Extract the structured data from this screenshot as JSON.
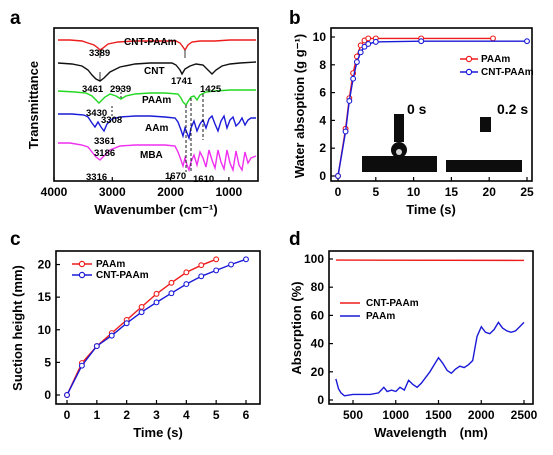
{
  "colors": {
    "red": "#ee1c1c",
    "blue": "#1a1ad8",
    "black": "#111111",
    "green": "#22d822",
    "magenta": "#ef2fef"
  },
  "panels": {
    "a": {
      "letter": "a"
    },
    "b": {
      "letter": "b"
    },
    "c": {
      "letter": "c"
    },
    "d": {
      "letter": "d"
    }
  },
  "chart_data": [
    {
      "type": "line",
      "panel": "a",
      "xlabel": "Wavenumber (cm⁻¹)",
      "ylabel": "Transmittance",
      "xlim": [
        4000,
        500
      ],
      "xticks": [
        4000,
        3000,
        2000,
        1000
      ],
      "series": [
        {
          "name": "CNT-PAAm",
          "color": "red"
        },
        {
          "name": "CNT",
          "color": "black"
        },
        {
          "name": "PAAm",
          "color": "green"
        },
        {
          "name": "AAm",
          "color": "blue"
        },
        {
          "name": "MBA",
          "color": "magenta"
        }
      ],
      "annotations": [
        "3389",
        "3461",
        "1741",
        "3430",
        "2939",
        "1425",
        "3308",
        "3361",
        "3186",
        "3316",
        "1670",
        "1610"
      ]
    },
    {
      "type": "line",
      "panel": "b",
      "xlabel": "Time (s)",
      "ylabel": "Water absoption (g g⁻¹)",
      "xlim": [
        0,
        25
      ],
      "ylim": [
        0,
        10
      ],
      "xticks": [
        0,
        5,
        10,
        15,
        20,
        25
      ],
      "yticks": [
        0,
        2,
        4,
        6,
        8,
        10
      ],
      "series": [
        {
          "name": "PAAm",
          "color": "red",
          "x": [
            0,
            1,
            1.5,
            2,
            2.5,
            3,
            3.5,
            4,
            5,
            11,
            20.5
          ],
          "y": [
            0,
            3.4,
            5.6,
            7.4,
            8.6,
            9.4,
            9.75,
            9.9,
            9.9,
            9.9,
            9.9
          ]
        },
        {
          "name": "CNT-PAAm",
          "color": "blue",
          "x": [
            0,
            1,
            1.5,
            2,
            2.5,
            3,
            3.5,
            4,
            5,
            11,
            25
          ],
          "y": [
            0,
            3.2,
            5.4,
            7.0,
            8.2,
            8.9,
            9.3,
            9.5,
            9.65,
            9.7,
            9.7
          ]
        }
      ],
      "inset_labels": [
        "0 s",
        "0.2 s"
      ]
    },
    {
      "type": "line",
      "panel": "c",
      "xlabel": "Time (s)",
      "ylabel": "Suction height (mm)",
      "xlim": [
        0,
        6
      ],
      "ylim": [
        0,
        21
      ],
      "xticks": [
        0,
        1,
        2,
        3,
        4,
        5,
        6
      ],
      "yticks": [
        0,
        5,
        10,
        15,
        20
      ],
      "series": [
        {
          "name": "PAAm",
          "color": "red",
          "x": [
            0,
            0.5,
            1,
            1.5,
            2,
            2.5,
            3,
            3.5,
            4,
            4.5,
            5
          ],
          "y": [
            0,
            4.9,
            7.5,
            9.5,
            11.5,
            13.5,
            15.5,
            17.2,
            18.8,
            19.9,
            20.8
          ]
        },
        {
          "name": "CNT-PAAm",
          "color": "blue",
          "x": [
            0,
            0.5,
            1,
            1.5,
            2,
            2.5,
            3,
            3.5,
            4,
            4.5,
            5,
            5.5,
            6
          ],
          "y": [
            0,
            4.5,
            7.5,
            9.1,
            11.0,
            12.7,
            14.2,
            15.6,
            17.0,
            18.2,
            19.1,
            20.0,
            20.8
          ]
        }
      ]
    },
    {
      "type": "line",
      "panel": "d",
      "xlabel": "Wavelength　(nm)",
      "ylabel": "Absorption (%)",
      "xlim": [
        250,
        2550
      ],
      "ylim": [
        -5,
        105
      ],
      "xticks": [
        500,
        1000,
        1500,
        2000,
        2500
      ],
      "yticks": [
        0,
        20,
        40,
        60,
        80,
        100
      ],
      "series": [
        {
          "name": "CNT-PAAm",
          "color": "red",
          "x": [
            300,
            2500
          ],
          "y": [
            99.2,
            99.0
          ]
        },
        {
          "name": "PAAm",
          "color": "blue",
          "x": [
            300,
            330,
            360,
            400,
            500,
            600,
            700,
            800,
            860,
            900,
            950,
            1000,
            1050,
            1100,
            1150,
            1200,
            1250,
            1300,
            1350,
            1400,
            1450,
            1500,
            1550,
            1600,
            1650,
            1700,
            1750,
            1800,
            1850,
            1900,
            1950,
            2000,
            2050,
            2100,
            2150,
            2200,
            2250,
            2300,
            2350,
            2400,
            2450,
            2500
          ],
          "y": [
            15,
            8,
            5,
            3,
            4,
            4,
            4,
            5,
            9,
            6,
            7,
            6,
            9,
            7,
            14,
            11,
            9,
            12,
            16,
            20,
            25,
            30,
            26,
            21,
            19,
            22,
            24,
            23,
            25,
            28,
            45,
            52,
            48,
            47,
            50,
            55,
            51,
            49,
            48,
            49,
            52,
            55
          ]
        }
      ]
    }
  ]
}
